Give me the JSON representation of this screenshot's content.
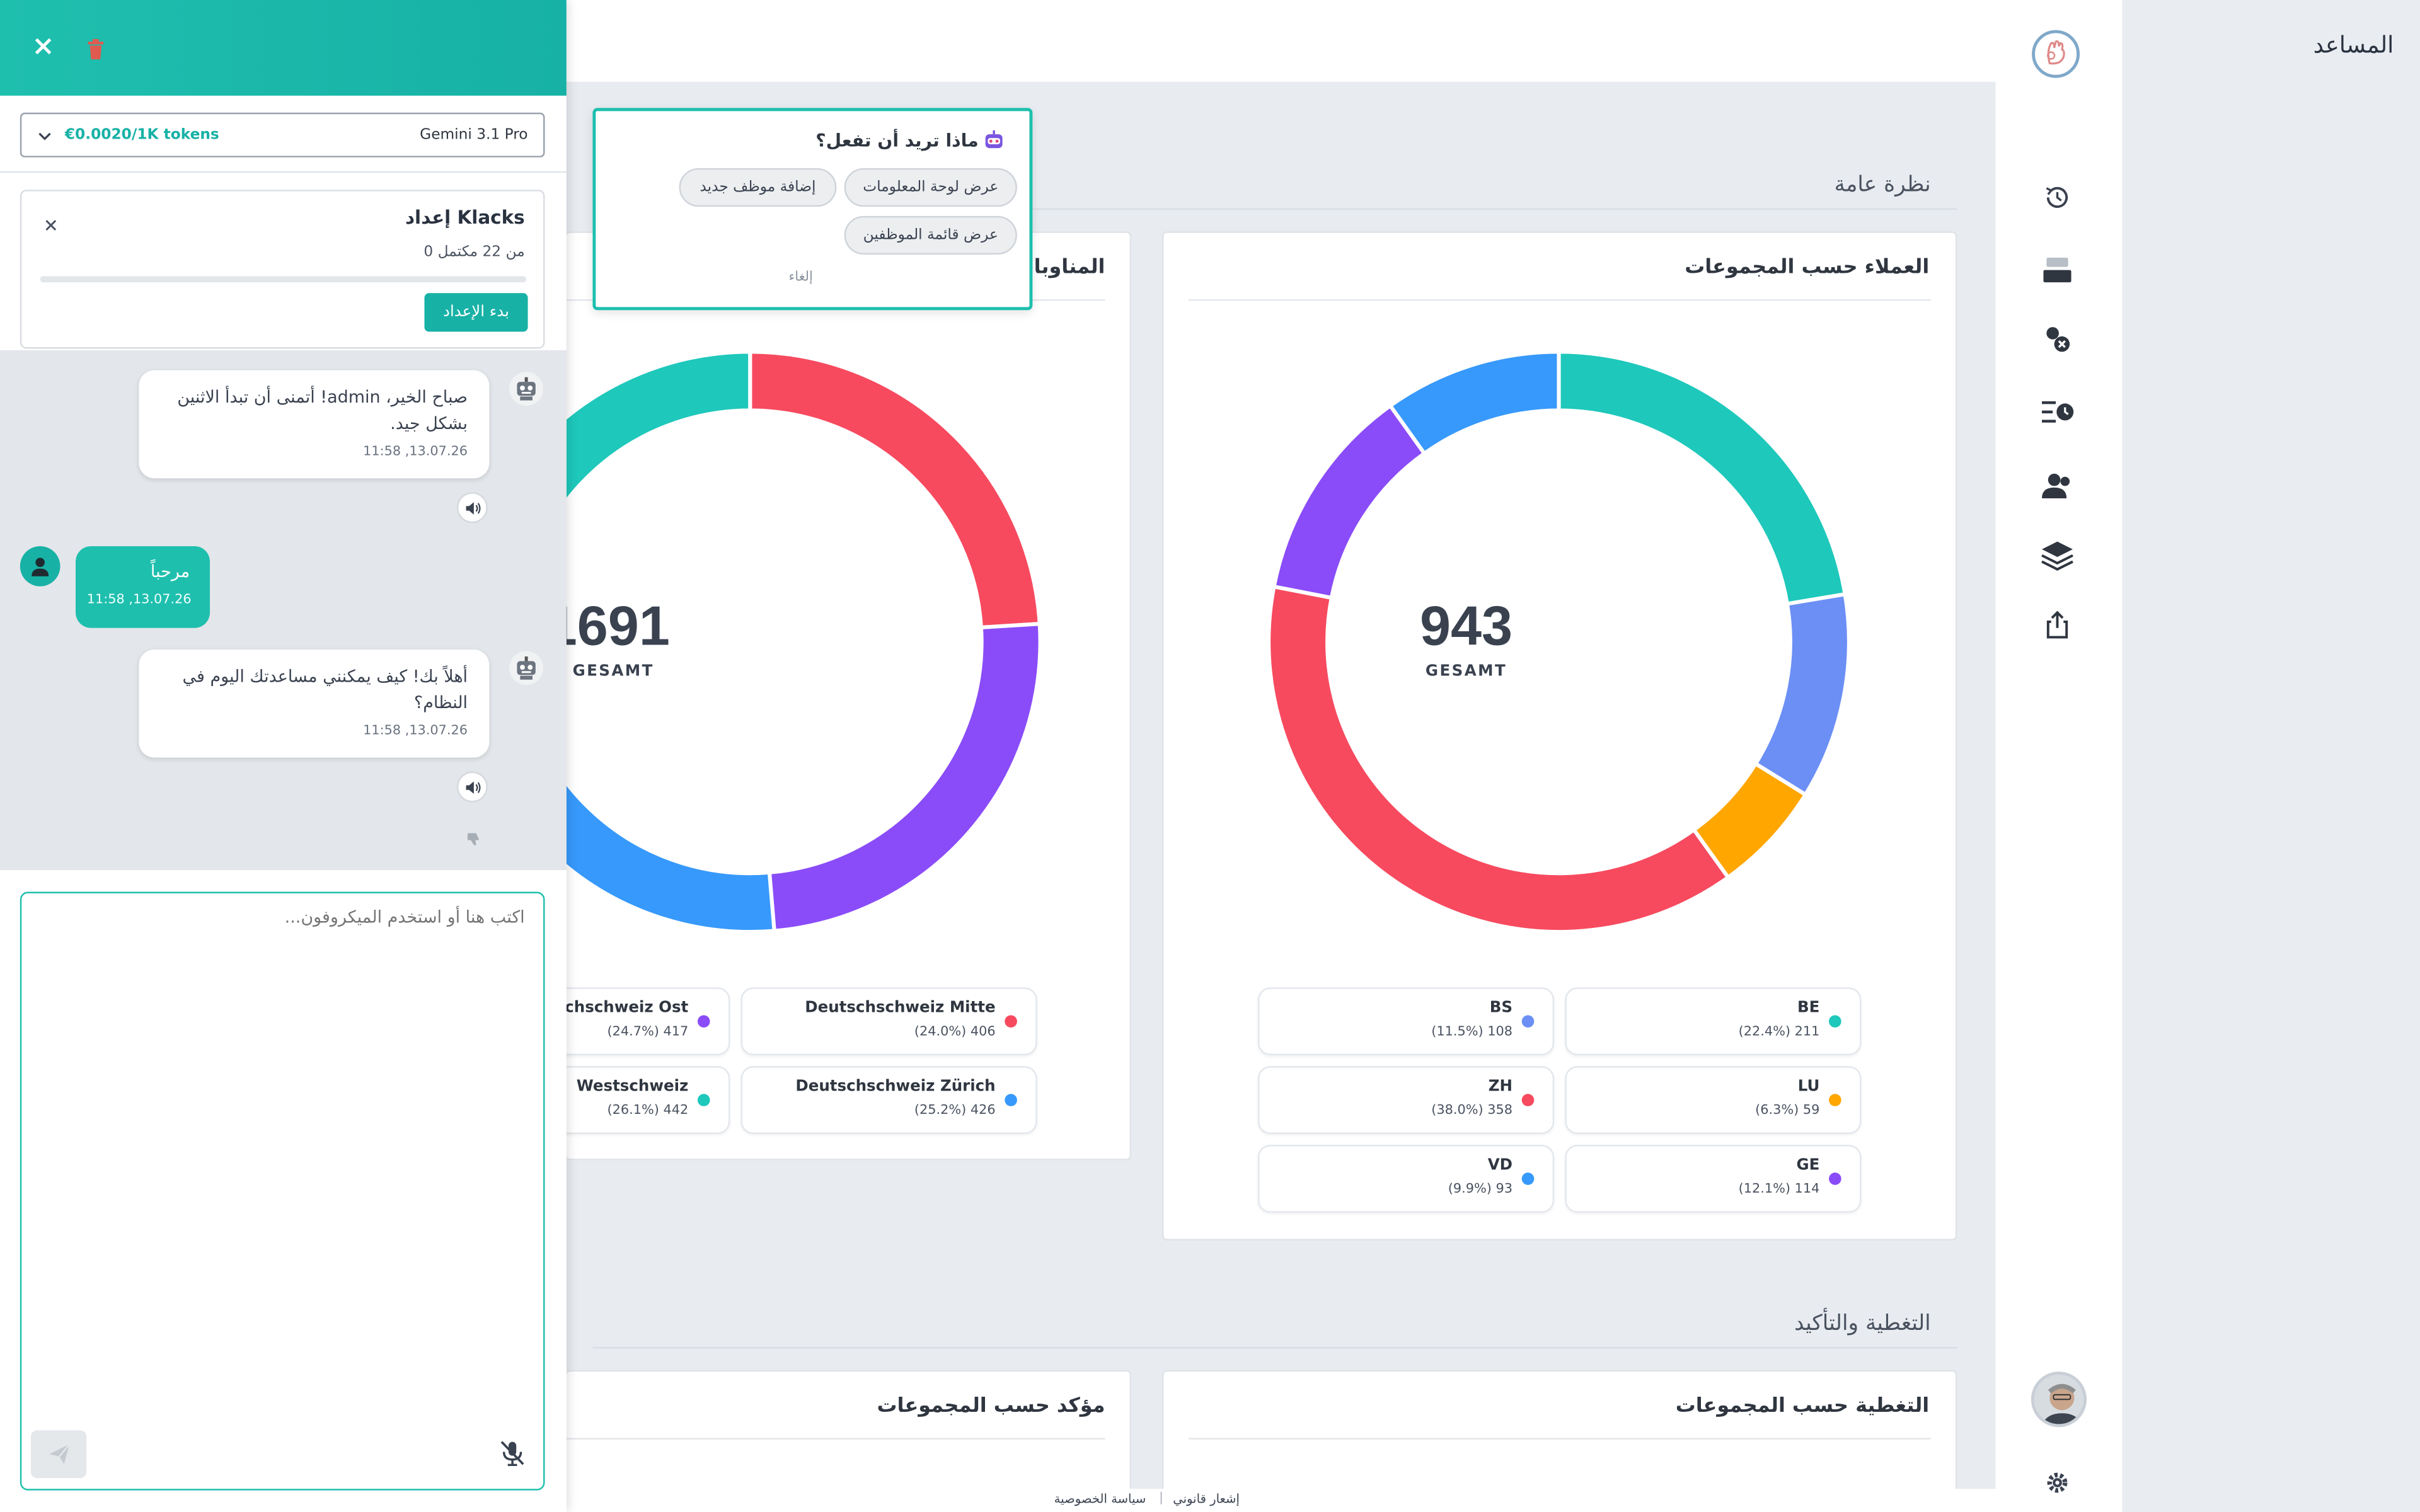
{
  "assistant": {
    "title": "المساعد",
    "model": "Gemini 3.1 Pro",
    "price": "€0.0020/1K tokens",
    "setup": {
      "title": "إعداد Klacks",
      "progress_text": "0 من 22 مكتمل",
      "progress": 0,
      "start_button": "بدء الإعداد"
    },
    "messages": [
      {
        "role": "bot",
        "lines": [
          "صباح الخير، admin! أتمنى أن تبدأ الاثنين",
          "بشكل جيد."
        ],
        "time": "11:58 ,13.07.26"
      },
      {
        "role": "user",
        "lines": [
          "مرحباً"
        ],
        "time": "11:58 ,13.07.26"
      },
      {
        "role": "bot",
        "lines": [
          "أهلاً بك! كيف يمكنني مساعدتك اليوم في",
          "النظام؟"
        ],
        "time": "11:58 ,13.07.26"
      }
    ],
    "input_placeholder": "اكتب هنا أو استخدم الميكروفون..."
  },
  "popup": {
    "question": "ماذا تريد أن تفعل؟",
    "actions": [
      "عرض لوحة المعلومات",
      "إضافة موظف جديد",
      "عرض قائمة الموظفين"
    ],
    "cancel": "إلغاء"
  },
  "overview": {
    "section_title": "نظرة عامة",
    "clients_card": {
      "title": "العملاء حسب المجموعات",
      "total": "943",
      "total_label": "GESAMT"
    },
    "shifts_card": {
      "title": "المناوبات",
      "total": "1691",
      "total_label": "GESAMT"
    }
  },
  "coverage": {
    "section_title": "التغطية والتأكيد",
    "card_left_title": "التغطية حسب المجموعات",
    "card_right_title": "مؤكد حسب المجموعات"
  },
  "footer": {
    "legal": "إشعار قانوني",
    "separator": "|",
    "privacy": "سياسة الخصوصية"
  },
  "colors": {
    "teal": "#1ec8bb",
    "periwinkle": "#6b8ff5",
    "orange": "#ffa600",
    "red": "#f74a5f",
    "purple": "#8a4cf8",
    "blue": "#3799fb"
  },
  "chart_data": [
    {
      "type": "pie",
      "title": "العملاء حسب المجموعات",
      "total": 943,
      "categories": [
        "BE",
        "BS",
        "LU",
        "ZH",
        "GE",
        "VD"
      ],
      "values": [
        211,
        108,
        59,
        358,
        114,
        93
      ],
      "percent_labels": [
        "(22.4%) 211",
        "(11.5%) 108",
        "(6.3%) 59",
        "(38.0%) 358",
        "(12.1%) 114",
        "(9.9%) 93"
      ],
      "colors": [
        "#1ec8bb",
        "#6b8ff5",
        "#ffa600",
        "#f74a5f",
        "#8a4cf8",
        "#3799fb"
      ]
    },
    {
      "type": "pie",
      "title": "المناوبات",
      "total": 1691,
      "categories": [
        "Deutschschweiz Mitte",
        "Deutschschweiz Ost",
        "Deutschschweiz Zürich",
        "Westschweiz"
      ],
      "values": [
        406,
        417,
        426,
        442
      ],
      "percent_labels": [
        "(24.0%) 406",
        "(24.7%) 417",
        "(25.2%) 426",
        "(26.1%) 442"
      ],
      "colors": [
        "#f74a5f",
        "#8a4cf8",
        "#3799fb",
        "#1ec8bb"
      ]
    }
  ]
}
